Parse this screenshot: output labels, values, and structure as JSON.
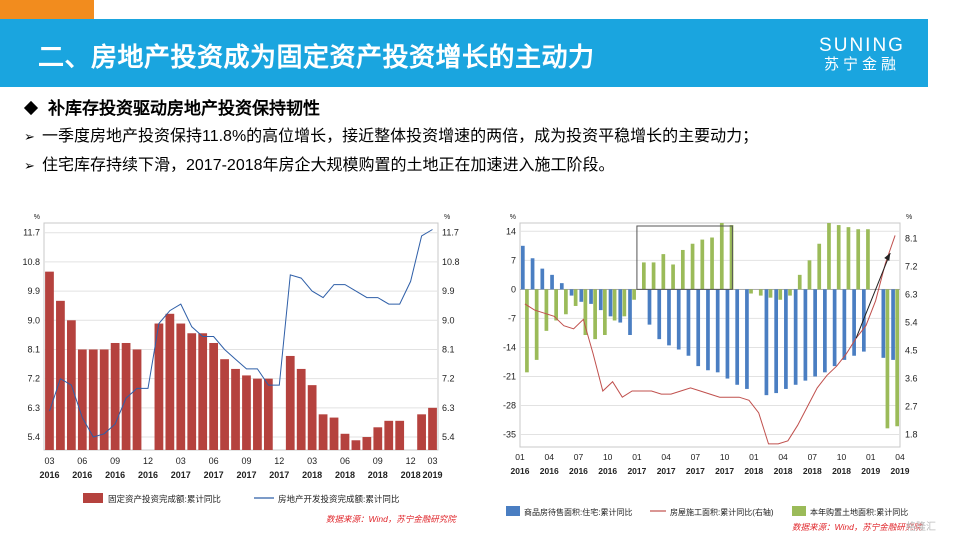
{
  "header": {
    "title": "二、房地产投资成为固定资产投资增长的主动力",
    "logo_en": "SUNING",
    "logo_cn": "苏宁金融",
    "accent_color": "#1aa5df",
    "corner_color": "#f28c1e"
  },
  "bullets": {
    "heading": "补库存投资驱动房地产投资保持韧性",
    "items": [
      "一季度房地产投资保持11.8%的高位增长，接近整体投资增速的两倍，成为投资平稳增长的主要动力；",
      "住宅库存持续下滑，2017-2018年房企大规模购置的土地正在加速进入施工阶段。"
    ]
  },
  "watermark": "格隆汇",
  "chart_data": [
    {
      "type": "bar",
      "unit_left": "%",
      "unit_right": "%",
      "left_ticks": [
        "11.7",
        "10.8",
        "9.9",
        "9.0",
        "8.1",
        "7.2",
        "6.3",
        "5.4"
      ],
      "right_ticks": [
        "11.7",
        "10.8",
        "9.9",
        "9.0",
        "8.1",
        "7.2",
        "6.3",
        "5.4"
      ],
      "ylim": [
        5.0,
        12.0
      ],
      "x_ticks": [
        {
          "month": "03",
          "year": "2016"
        },
        {
          "month": "06",
          "year": "2016"
        },
        {
          "month": "09",
          "year": "2016"
        },
        {
          "month": "12",
          "year": "2016"
        },
        {
          "month": "03",
          "year": "2017"
        },
        {
          "month": "06",
          "year": "2017"
        },
        {
          "month": "09",
          "year": "2017"
        },
        {
          "month": "12",
          "year": "2017"
        },
        {
          "month": "03",
          "year": "2018"
        },
        {
          "month": "06",
          "year": "2018"
        },
        {
          "month": "09",
          "year": "2018"
        },
        {
          "month": "12",
          "year": "2018"
        },
        {
          "month": "03",
          "year": "2019"
        }
      ],
      "bar_color": "#b5423e",
      "line_color": "#2f5fa8",
      "series": [
        {
          "name": "固定资产投资完成额:累计同比",
          "kind": "bar",
          "values": [
            10.5,
            9.6,
            9.0,
            8.1,
            8.1,
            8.1,
            8.3,
            8.3,
            8.1,
            null,
            8.9,
            9.2,
            8.9,
            8.6,
            8.6,
            8.3,
            7.8,
            7.5,
            7.3,
            7.2,
            7.2,
            null,
            7.9,
            7.5,
            7.0,
            6.1,
            6.0,
            5.5,
            5.3,
            5.4,
            5.7,
            5.9,
            5.9,
            null,
            6.1,
            6.3
          ]
        },
        {
          "name": "房地产开发投资完成额:累计同比",
          "kind": "line",
          "values": [
            6.2,
            7.2,
            7.0,
            6.0,
            5.4,
            5.5,
            5.8,
            6.6,
            6.9,
            6.9,
            8.9,
            9.3,
            9.5,
            8.8,
            8.5,
            8.5,
            8.1,
            7.8,
            7.5,
            7.5,
            7.0,
            7.0,
            10.4,
            10.3,
            9.9,
            9.7,
            10.1,
            10.1,
            9.9,
            9.7,
            9.7,
            9.5,
            9.5,
            10.2,
            11.6,
            11.8
          ]
        }
      ],
      "source": "数据来源：Wind，苏宁金融研究院"
    },
    {
      "type": "bar",
      "unit_left": "%",
      "unit_right": "%",
      "left_ticks": [
        "14",
        "7",
        "0",
        "-7",
        "-14",
        "-21",
        "-28",
        "-35"
      ],
      "right_ticks": [
        "8.1",
        "7.2",
        "6.3",
        "5.4",
        "4.5",
        "3.6",
        "2.7",
        "1.8"
      ],
      "left_ylim": [
        -38,
        16
      ],
      "right_ylim": [
        1.4,
        8.6
      ],
      "x_ticks": [
        {
          "month": "01",
          "year": "2016"
        },
        {
          "month": "04",
          "year": "2016"
        },
        {
          "month": "07",
          "year": "2016"
        },
        {
          "month": "10",
          "year": "2016"
        },
        {
          "month": "01",
          "year": "2017"
        },
        {
          "month": "04",
          "year": "2017"
        },
        {
          "month": "07",
          "year": "2017"
        },
        {
          "month": "10",
          "year": "2017"
        },
        {
          "month": "01",
          "year": "2018"
        },
        {
          "month": "04",
          "year": "2018"
        },
        {
          "month": "07",
          "year": "2018"
        },
        {
          "month": "10",
          "year": "2018"
        },
        {
          "month": "01",
          "year": "2019"
        },
        {
          "month": "04",
          "year": "2019"
        }
      ],
      "colors": {
        "blue_bar": "#4a7ec2",
        "green_bar": "#9bbb59",
        "line": "#c0504d"
      },
      "series": [
        {
          "name": "商品房待售面积:住宅:累计同比",
          "kind": "bar",
          "values": [
            10.5,
            7.5,
            5.0,
            3.5,
            1.5,
            -1.5,
            -3.0,
            -3.5,
            -5.0,
            -6.5,
            -8.0,
            -11.0,
            null,
            -8.5,
            -12.0,
            -13.5,
            -14.5,
            -16.0,
            -18.5,
            -19.5,
            -20.0,
            -21.5,
            -23.0,
            -24.0,
            null,
            -25.5,
            -25.0,
            -24.0,
            -23.0,
            -22.0,
            -21.0,
            -20.0,
            -18.5,
            -17.0,
            -16.0,
            -15.0,
            null,
            -16.5,
            -17.0
          ]
        },
        {
          "name": "房屋施工面积:累计同比(右轴)",
          "kind": "line",
          "values": [
            6.0,
            5.8,
            5.7,
            5.6,
            5.3,
            5.2,
            5.5,
            4.4,
            3.2,
            3.5,
            3.0,
            3.2,
            3.2,
            3.2,
            3.1,
            3.1,
            3.2,
            3.3,
            3.2,
            3.1,
            3.0,
            3.0,
            3.0,
            2.9,
            2.5,
            1.5,
            1.5,
            1.6,
            2.1,
            2.7,
            3.3,
            3.7,
            4.0,
            4.4,
            4.9,
            5.3,
            6.1,
            7.3,
            8.2
          ]
        },
        {
          "name": "本年购置土地面积:累计同比",
          "kind": "bar",
          "values": [
            -20.0,
            -17.0,
            -10.0,
            -7.5,
            -6.0,
            -4.0,
            -11.0,
            -12.0,
            -11.0,
            -7.5,
            -6.5,
            -2.5,
            6.5,
            6.5,
            8.5,
            6.0,
            9.5,
            11.0,
            12.0,
            12.5,
            16.0,
            15.5,
            null,
            -1.0,
            -1.5,
            -2.0,
            -2.5,
            -1.5,
            3.5,
            7.0,
            11.0,
            16.0,
            15.5,
            15.0,
            14.5,
            14.5,
            null,
            -33.5,
            -33.0
          ]
        }
      ],
      "source": "数据来源：Wind，苏宁金融研究院"
    }
  ]
}
